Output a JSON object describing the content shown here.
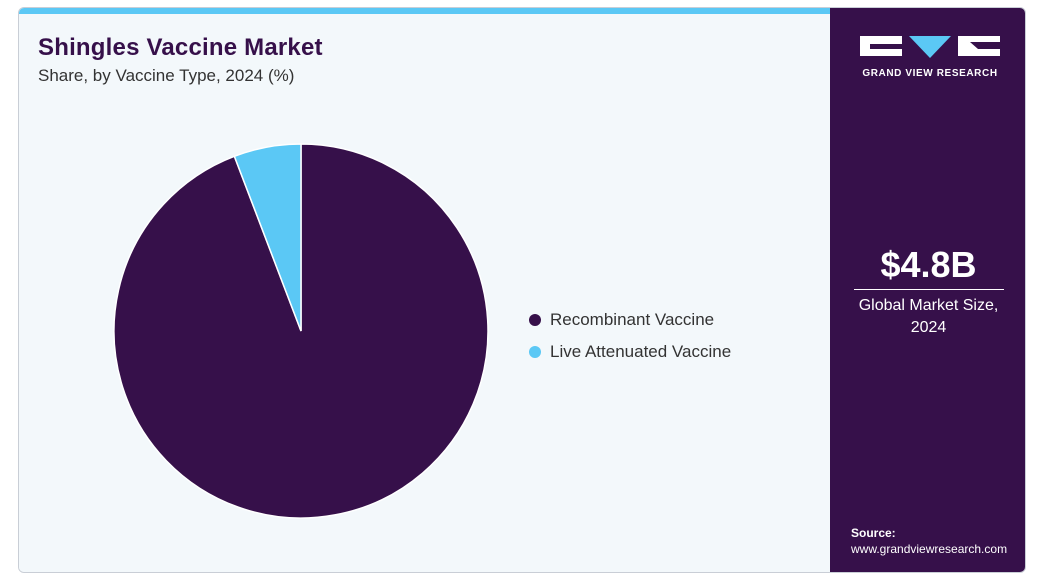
{
  "header": {
    "title": "Shingles Vaccine Market",
    "subtitle": "Share, by Vaccine Type, 2024 (%)"
  },
  "chart_data": {
    "type": "pie",
    "title": "Shingles Vaccine Market",
    "subtitle": "Share, by Vaccine Type, 2024 (%)",
    "legend_position": "right",
    "slices": [
      {
        "label": "Recombinant Vaccine",
        "value": 94.2,
        "color": "#36104a"
      },
      {
        "label": "Live Attenuated Vaccine",
        "value": 5.8,
        "color": "#5bc8f5"
      }
    ]
  },
  "sidebar": {
    "logo_text": "GRAND VIEW RESEARCH",
    "market_value": "$4.8B",
    "market_label_line1": "Global Market Size,",
    "market_label_line2": "2024",
    "source_label": "Source:",
    "source_url": "www.grandviewresearch.com"
  },
  "colors": {
    "brand_dark": "#36104a",
    "accent": "#5bc8f5",
    "background": "#f3f8fb"
  }
}
